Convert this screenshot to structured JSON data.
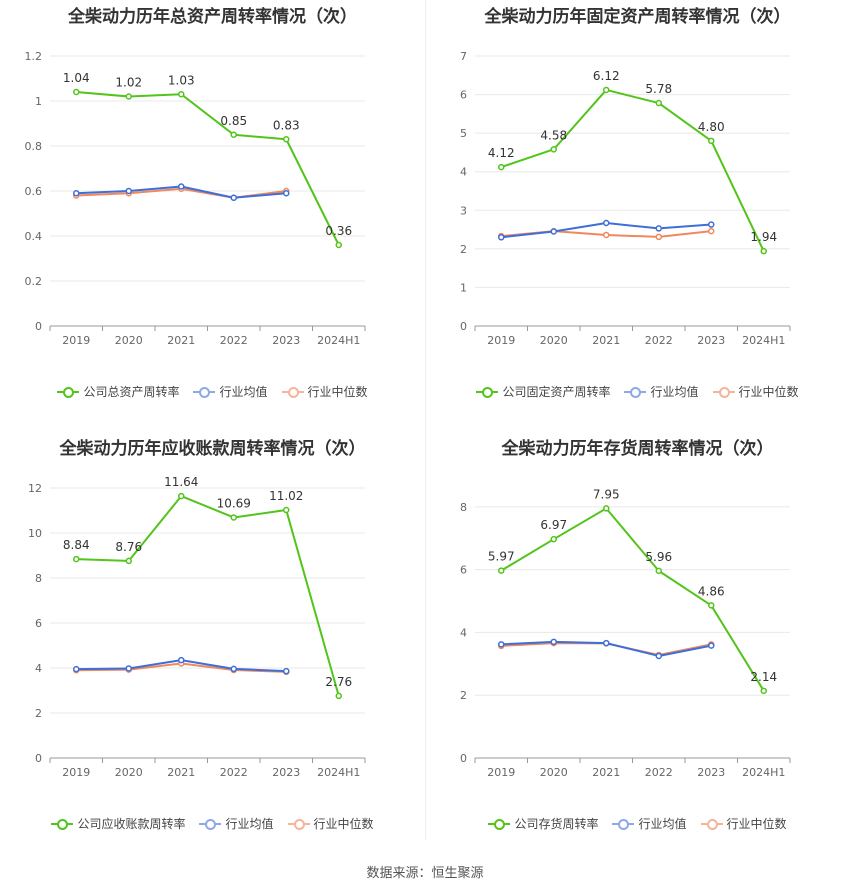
{
  "source": "数据来源：恒生聚源",
  "colors": {
    "company": "#52c41a",
    "avg": "#3e6ed8",
    "median": "#f0885e",
    "grid": "#e8e8e8",
    "axis": "#999999"
  },
  "legend_labels": {
    "avg": "行业均值",
    "median": "行业中位数"
  },
  "chart_data": [
    {
      "type": "line",
      "title": "全柴动力历年总资产周转率情况（次）",
      "categories": [
        "2019",
        "2020",
        "2021",
        "2022",
        "2023",
        "2024H1"
      ],
      "ylim": [
        0,
        1.2
      ],
      "yticks": [
        0,
        0.2,
        0.4,
        0.6,
        0.8,
        1,
        1.2
      ],
      "ytick_labels": [
        "0",
        "0.2",
        "0.4",
        "0.6",
        "0.8",
        "1",
        "1.2"
      ],
      "series": [
        {
          "name": "公司总资产周转率",
          "values": [
            1.04,
            1.02,
            1.03,
            0.85,
            0.83,
            0.36
          ],
          "labels": [
            "1.04",
            "1.02",
            "1.03",
            "0.85",
            "0.83",
            "0.36"
          ]
        },
        {
          "name": "行业均值",
          "values": [
            0.59,
            0.6,
            0.62,
            0.57,
            0.59,
            null
          ]
        },
        {
          "name": "行业中位数",
          "values": [
            0.58,
            0.59,
            0.61,
            0.57,
            0.6,
            null
          ]
        }
      ]
    },
    {
      "type": "line",
      "title": "全柴动力历年固定资产周转率情况（次）",
      "categories": [
        "2019",
        "2020",
        "2021",
        "2022",
        "2023",
        "2024H1"
      ],
      "ylim": [
        0,
        7
      ],
      "yticks": [
        0,
        1,
        2,
        3,
        4,
        5,
        6,
        7
      ],
      "ytick_labels": [
        "0",
        "1",
        "2",
        "3",
        "4",
        "5",
        "6",
        "7"
      ],
      "series": [
        {
          "name": "公司固定资产周转率",
          "values": [
            4.12,
            4.58,
            6.12,
            5.78,
            4.8,
            1.94
          ],
          "labels": [
            "4.12",
            "4.58",
            "6.12",
            "5.78",
            "4.80",
            "1.94"
          ]
        },
        {
          "name": "行业均值",
          "values": [
            2.3,
            2.45,
            2.67,
            2.53,
            2.63,
            null
          ]
        },
        {
          "name": "行业中位数",
          "values": [
            2.33,
            2.46,
            2.36,
            2.31,
            2.46,
            null
          ]
        }
      ]
    },
    {
      "type": "line",
      "title": "全柴动力历年应收账款周转率情况（次）",
      "categories": [
        "2019",
        "2020",
        "2021",
        "2022",
        "2023",
        "2024H1"
      ],
      "ylim": [
        0,
        12
      ],
      "yticks": [
        0,
        2,
        4,
        6,
        8,
        10,
        12
      ],
      "ytick_labels": [
        "0",
        "2",
        "4",
        "6",
        "8",
        "10",
        "12"
      ],
      "series": [
        {
          "name": "公司应收账款周转率",
          "values": [
            8.84,
            8.76,
            11.64,
            10.69,
            11.02,
            2.76
          ],
          "labels": [
            "8.84",
            "8.76",
            "11.64",
            "10.69",
            "11.02",
            "2.76"
          ]
        },
        {
          "name": "行业均值",
          "values": [
            3.95,
            3.98,
            4.35,
            3.96,
            3.86,
            null
          ]
        },
        {
          "name": "行业中位数",
          "values": [
            3.9,
            3.93,
            4.2,
            3.91,
            3.83,
            null
          ]
        }
      ]
    },
    {
      "type": "line",
      "title": "全柴动力历年存货周转率情况（次）",
      "categories": [
        "2019",
        "2020",
        "2021",
        "2022",
        "2023",
        "2024H1"
      ],
      "ylim": [
        0,
        8.6
      ],
      "yticks": [
        0,
        2,
        4,
        6,
        8
      ],
      "ytick_labels": [
        "0",
        "2",
        "4",
        "6",
        "8"
      ],
      "series": [
        {
          "name": "公司存货周转率",
          "values": [
            5.97,
            6.97,
            7.95,
            5.96,
            4.86,
            2.14
          ],
          "labels": [
            "5.97",
            "6.97",
            "7.95",
            "5.96",
            "4.86",
            "2.14"
          ]
        },
        {
          "name": "行业均值",
          "values": [
            3.62,
            3.7,
            3.66,
            3.25,
            3.58,
            null
          ]
        },
        {
          "name": "行业中位数",
          "values": [
            3.57,
            3.66,
            3.65,
            3.28,
            3.62,
            null
          ]
        }
      ]
    }
  ]
}
